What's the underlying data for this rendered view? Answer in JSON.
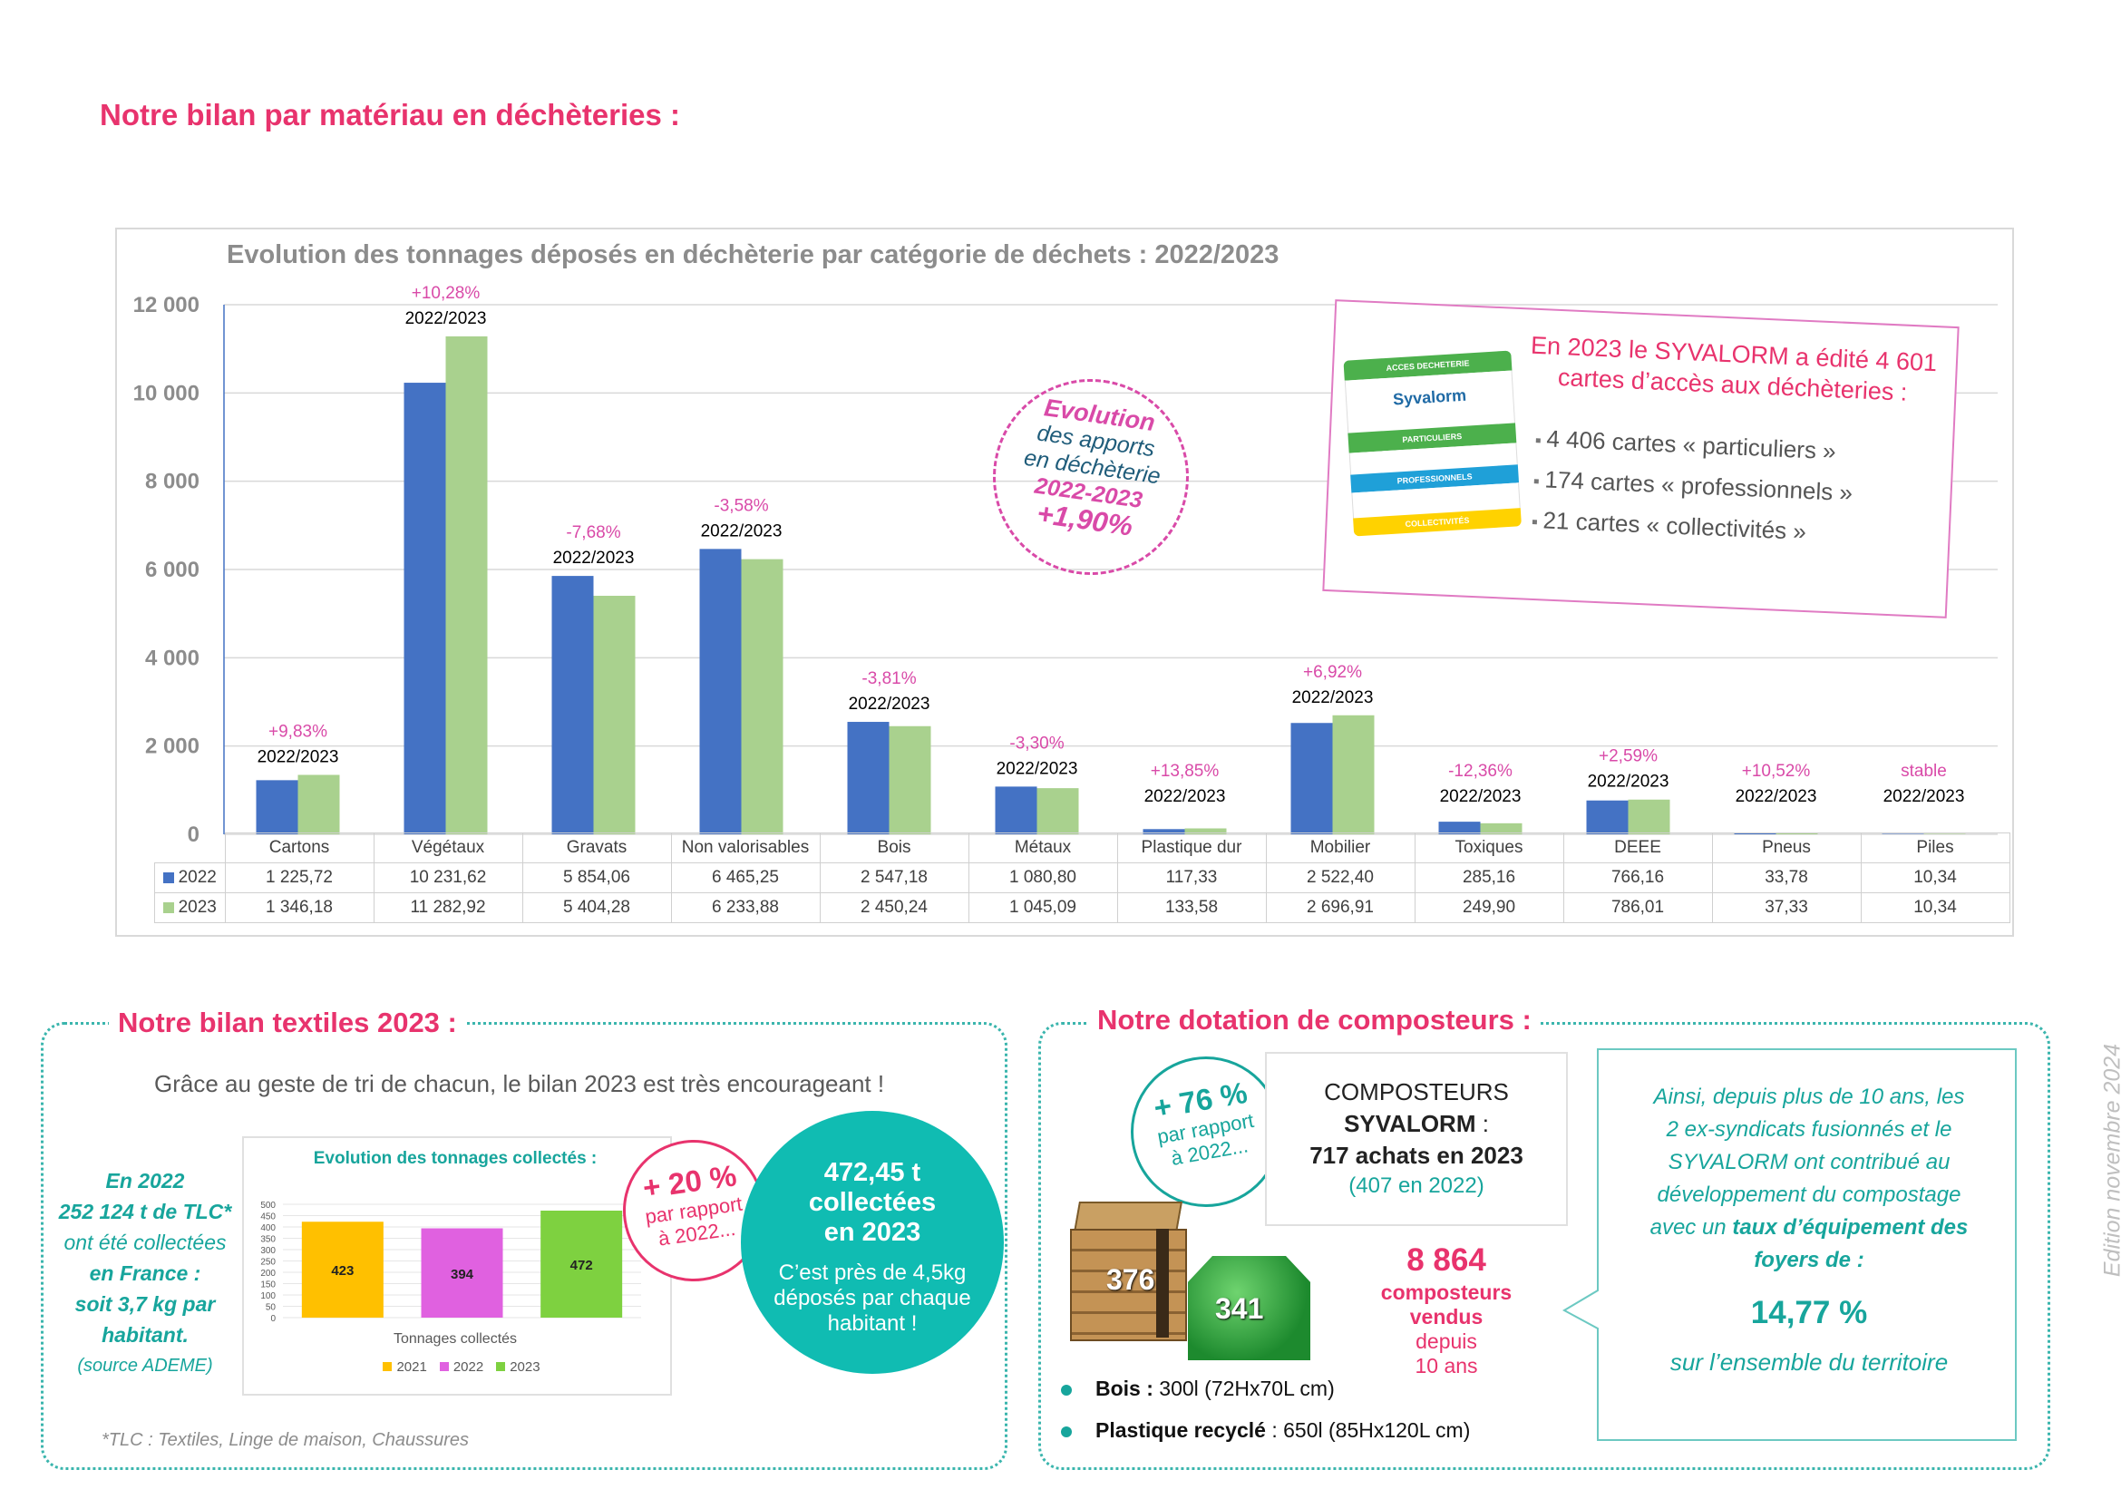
{
  "header": {
    "title": "Notre bilan par matériau en déchèteries :"
  },
  "chart_data": {
    "type": "bar",
    "title": "Evolution des tonnages déposés en déchèterie par catégorie de déchets : 2022/2023",
    "categories": [
      "Cartons",
      "Végétaux",
      "Gravats",
      "Non valorisables",
      "Bois",
      "Métaux",
      "Plastique dur",
      "Mobilier",
      "Toxiques",
      "DEEE",
      "Pneus",
      "Piles"
    ],
    "series": [
      {
        "name": "2022",
        "color": "#4472c4",
        "values": [
          1225.72,
          10231.62,
          5854.06,
          6465.25,
          2547.18,
          1080.8,
          117.33,
          2522.4,
          285.16,
          766.16,
          33.78,
          10.34
        ],
        "labels": [
          "1 225,72",
          "10 231,62",
          "5 854,06",
          "6 465,25",
          "2 547,18",
          "1 080,80",
          "117,33",
          "2 522,40",
          "285,16",
          "766,16",
          "33,78",
          "10,34"
        ]
      },
      {
        "name": "2023",
        "color": "#a9d18e",
        "values": [
          1346.18,
          11282.92,
          5404.28,
          6233.88,
          2450.24,
          1045.09,
          133.58,
          2696.91,
          249.9,
          786.01,
          37.33,
          10.34
        ],
        "labels": [
          "1 346,18",
          "11 282,92",
          "5 404,28",
          "6 233,88",
          "2 450,24",
          "1 045,09",
          "133,58",
          "2 696,91",
          "249,90",
          "786,01",
          "37,33",
          "10,34"
        ]
      }
    ],
    "evolution": [
      "+9,83%",
      "+10,28%",
      "-7,68%",
      "-3,58%",
      "-3,81%",
      "-3,30%",
      "+13,85%",
      "+6,92%",
      "-12,36%",
      "+2,59%",
      "+10,52%",
      "stable"
    ],
    "period_label": "2022/2023",
    "ylim": [
      0,
      12000
    ],
    "yticks": [
      0,
      2000,
      4000,
      6000,
      8000,
      10000,
      12000
    ],
    "ytick_labels": [
      "0",
      "2 000",
      "4 000",
      "6 000",
      "8 000",
      "10 000",
      "12 000"
    ],
    "grid": true,
    "legend": "table-bottom"
  },
  "stamp": {
    "line1": "Evolution",
    "line2": "des apports",
    "line3": "en déchèterie",
    "line4": "2022-2023",
    "line5": "+1,90%"
  },
  "cards": {
    "headline1": "En 2023 le SYVALORM a édité 4 601",
    "headline2": "cartes d’accès aux déchèteries :",
    "items": [
      "4 406 cartes « particuliers »",
      "174 cartes « professionnels »",
      "21 cartes « collectivités »"
    ],
    "card_image": {
      "acces": "ACCES DECHETERIE",
      "brand": "Syvalorm",
      "particuliers": "PARTICULIERS",
      "professionnels": "PROFESSIONNELS",
      "collectivites": "COLLECTIVITÉS"
    }
  },
  "textiles": {
    "title": "Notre bilan textiles 2023 :",
    "intro": "Grâce au geste de tri de chacun, le bilan 2023 est très encourageant !",
    "france": {
      "l1": "En 2022",
      "l2": "252 124 t de TLC*",
      "l3": "ont été collectées",
      "l4": "en France :",
      "l5": "soit 3,7 kg par",
      "l6": "habitant.",
      "l7": "(source ADEME)"
    },
    "footnote": "*TLC :  Textiles, Linge de maison, Chaussures",
    "mini_chart": {
      "title": "Evolution des tonnages collectés :",
      "xlabel": "Tonnages collectés",
      "categories": [
        "2021",
        "2022",
        "2023"
      ],
      "values": [
        423,
        394,
        472
      ],
      "value_labels": [
        "423",
        "394",
        "472"
      ],
      "colors": [
        "#ffc000",
        "#e061e0",
        "#7ed140"
      ],
      "yticks": [
        "0",
        "50",
        "100",
        "150",
        "200",
        "250",
        "300",
        "350",
        "400",
        "450",
        "500"
      ],
      "ylim": [
        0,
        500
      ]
    },
    "badge": {
      "l1": "+ 20 %",
      "l2": "par rapport",
      "l3": "à 2022..."
    },
    "big_circle": {
      "l1": "472,45 t",
      "l2": "collectées",
      "l3": "en 2023",
      "l4": "C’est près de 4,5kg",
      "l5": "déposés par chaque",
      "l6": "habitant !"
    }
  },
  "compost": {
    "title": "Notre dotation de composteurs :",
    "badge": {
      "l1": "+ 76 %",
      "l2": "par rapport",
      "l3": "à 2022..."
    },
    "box": {
      "l1": "COMPOSTEURS",
      "l2": "SYVALORM",
      "l2b": " :",
      "l3": "717 achats en 2023",
      "l4": "(407 en 2022)"
    },
    "sold": {
      "l1": "8 864",
      "l2": "composteurs",
      "l3": "vendus",
      "l4": "depuis",
      "l5": "10 ans"
    },
    "bois_count": "376",
    "plastique_count": "341",
    "bullets": [
      {
        "label": "Bois :",
        "desc": " 300l (72Hx70L cm)"
      },
      {
        "label": "Plastique recyclé",
        "desc": " : 650l (85Hx120L cm)"
      }
    ],
    "quote": {
      "l1": "Ainsi, depuis plus de 10 ans, les",
      "l2": "2 ex-syndicats fusionnés et le",
      "l3": "SYVALORM ont contribué au",
      "l4": "développement du compostage",
      "l5a": "avec un ",
      "l5b": "taux d’équipement des",
      "l6": "foyers de :",
      "value": "14,77 %",
      "tail": "sur l’ensemble du territoire"
    }
  },
  "edition": "Edition novembre 2024"
}
